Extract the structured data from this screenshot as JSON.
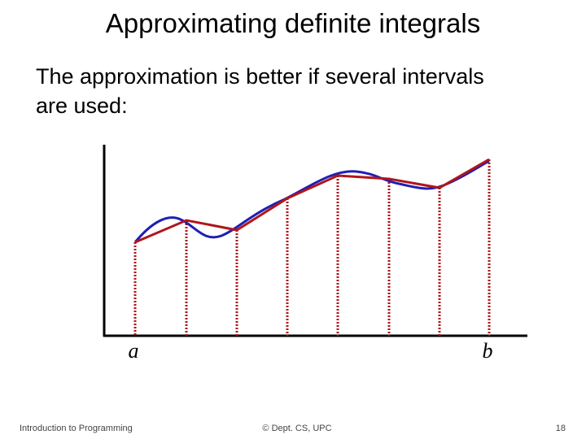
{
  "slide": {
    "title": "Approximating definite integrals",
    "body": [
      "The approximation is better if several intervals",
      "are used:"
    ],
    "diagram": {
      "label_left": "a",
      "label_right": "b"
    },
    "footer": {
      "left": "Introduction to Programming",
      "center": "© Dept. CS, UPC",
      "right": "18"
    }
  }
}
